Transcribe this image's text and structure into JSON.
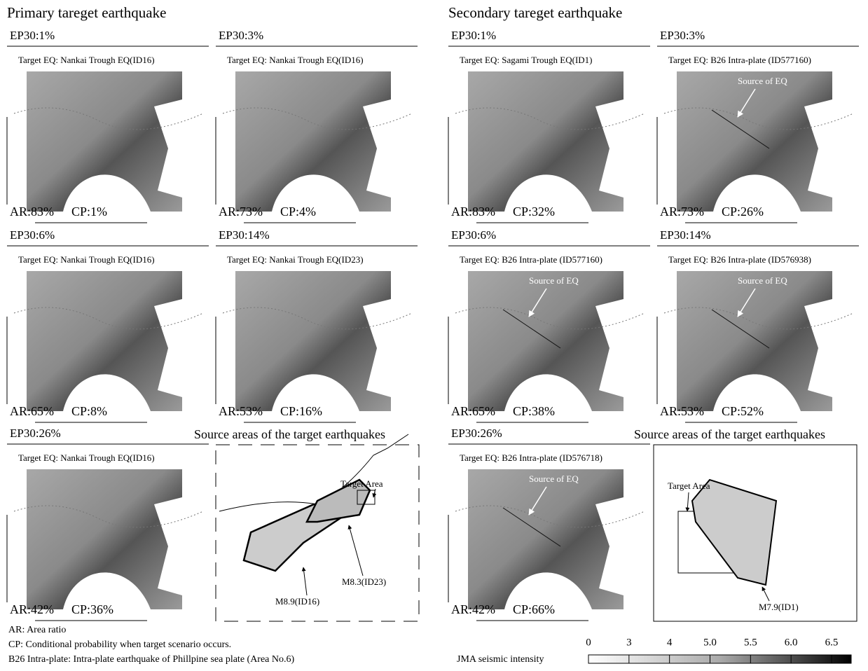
{
  "sections": [
    {
      "title": "Primary tareget earthquake",
      "panels": [
        {
          "ep30": "EP30:1%",
          "target": "Target EQ: Nankai Trough EQ(ID16)",
          "ar": "AR:83%",
          "cp": "CP:1%"
        },
        {
          "ep30": "EP30:3%",
          "target": "Target EQ: Nankai Trough EQ(ID16)",
          "ar": "AR:73%",
          "cp": "CP:4%"
        },
        {
          "ep30": "EP30:6%",
          "target": "Target EQ: Nankai Trough EQ(ID16)",
          "ar": "AR:65%",
          "cp": "CP:8%"
        },
        {
          "ep30": "EP30:14%",
          "target": "Target EQ: Nankai Trough EQ(ID23)",
          "ar": "AR:53%",
          "cp": "CP:16%"
        },
        {
          "ep30": "EP30:26%",
          "target": "Target EQ: Nankai Trough EQ(ID16)",
          "ar": "AR:42%",
          "cp": "CP:36%"
        }
      ],
      "source_areas": {
        "title": "Source areas of the target earthquakes",
        "labels": [
          "Target Area",
          "M8.3(ID23)",
          "M8.9(ID16)"
        ]
      }
    },
    {
      "title": "Secondary tareget earthquake",
      "panels": [
        {
          "ep30": "EP30:1%",
          "target": "Target EQ: Sagami Trough EQ(ID1)",
          "ar": "AR:83%",
          "cp": "CP:32%"
        },
        {
          "ep30": "EP30:3%",
          "target": "Target EQ: B26 Intra-plate (ID577160)",
          "source": "Source of EQ",
          "ar": "AR:73%",
          "cp": "CP:26%"
        },
        {
          "ep30": "EP30:6%",
          "target": "Target EQ: B26 Intra-plate (ID577160)",
          "source": "Source of EQ",
          "ar": "AR:65%",
          "cp": "CP:38%"
        },
        {
          "ep30": "EP30:14%",
          "target": "Target EQ: B26 Intra-plate (ID576938)",
          "source": "Source of EQ",
          "ar": "AR:53%",
          "cp": "CP:52%"
        },
        {
          "ep30": "EP30:26%",
          "target": "Target EQ: B26 Intra-plate (ID576718)",
          "source": "Source of EQ",
          "ar": "AR:42%",
          "cp": "CP:66%"
        }
      ],
      "source_areas": {
        "title": "Source areas of the target earthquakes",
        "labels": [
          "Target Area",
          "M7.9(ID1)"
        ]
      }
    }
  ],
  "notes": [
    "AR: Area ratio",
    "CP: Conditional probability when target scenario occurs.",
    "B26 Intra-plate: Intra-plate earthquake of Phillpine sea plate (Area No.6)"
  ],
  "legend": {
    "title": "JMA  seismic intensity",
    "ticks": [
      "0",
      "3",
      "4",
      "5.0",
      "5.5",
      "6.0",
      "6.5"
    ]
  }
}
